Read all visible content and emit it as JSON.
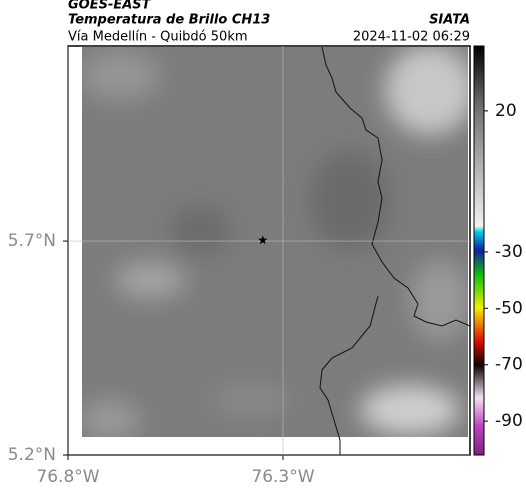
{
  "header": {
    "satellite": "GOES-EAST",
    "title": "Temperatura de Brillo CH13",
    "source": "SIATA",
    "subtitle": "Vía Medellín - Quibdó 50km",
    "timestamp": "2024-11-02 06:29"
  },
  "map": {
    "lon_range": [
      -76.8,
      -75.865
    ],
    "lat_range": [
      5.2,
      6.156
    ],
    "lon_ticks": [
      {
        "value": -76.8,
        "label": "76.8°W"
      },
      {
        "value": -76.3,
        "label": "76.3°W"
      }
    ],
    "lat_ticks": [
      {
        "value": 5.7,
        "label": "5.7°N"
      },
      {
        "value": 5.2,
        "label": "5.2°N"
      }
    ],
    "marker": {
      "lon": -76.347,
      "lat": 5.702
    },
    "grid": true
  },
  "colorbar": {
    "clim": [
      -102,
      43
    ],
    "ticks": [
      20,
      -30,
      -50,
      -70,
      -90
    ]
  }
}
